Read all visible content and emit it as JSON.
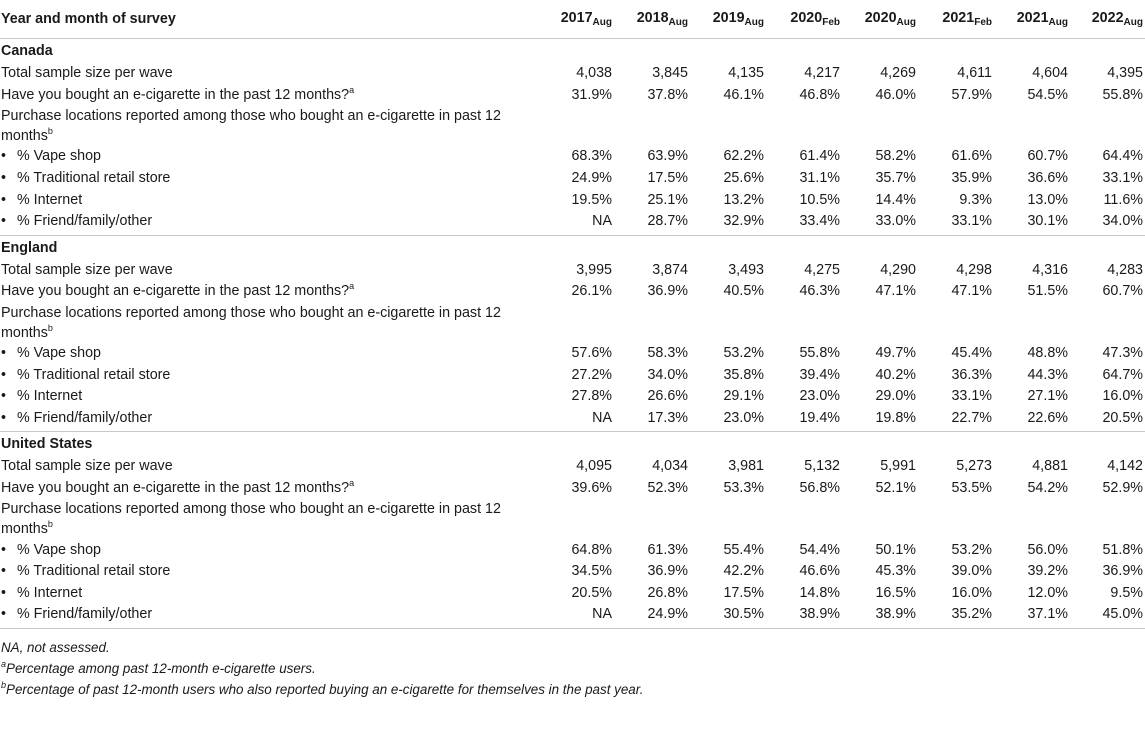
{
  "header": {
    "first": "Year and month of survey",
    "years": [
      {
        "y": "2017",
        "m": "Aug"
      },
      {
        "y": "2018",
        "m": "Aug"
      },
      {
        "y": "2019",
        "m": "Aug"
      },
      {
        "y": "2020",
        "m": "Feb"
      },
      {
        "y": "2020",
        "m": "Aug"
      },
      {
        "y": "2021",
        "m": "Feb"
      },
      {
        "y": "2021",
        "m": "Aug"
      },
      {
        "y": "2022",
        "m": "Aug"
      }
    ]
  },
  "labels": {
    "sample": "Total sample size per wave",
    "bought": "Have you bought an e-cigarette in the past 12 months?",
    "bought_sup": "a",
    "purchase": "Purchase locations reported among those who bought an e-cigarette in past 12 months",
    "purchase_sup": "b",
    "bullet": "•",
    "vape": "% Vape shop",
    "retail": "% Traditional retail store",
    "internet": "% Internet",
    "friend": "% Friend/family/other"
  },
  "countries": [
    {
      "name": "Canada",
      "sample": [
        "4,038",
        "3,845",
        "4,135",
        "4,217",
        "4,269",
        "4,611",
        "4,604",
        "4,395"
      ],
      "bought": [
        "31.9%",
        "37.8%",
        "46.1%",
        "46.8%",
        "46.0%",
        "57.9%",
        "54.5%",
        "55.8%"
      ],
      "vape": [
        "68.3%",
        "63.9%",
        "62.2%",
        "61.4%",
        "58.2%",
        "61.6%",
        "60.7%",
        "64.4%"
      ],
      "retail": [
        "24.9%",
        "17.5%",
        "25.6%",
        "31.1%",
        "35.7%",
        "35.9%",
        "36.6%",
        "33.1%"
      ],
      "internet": [
        "19.5%",
        "25.1%",
        "13.2%",
        "10.5%",
        "14.4%",
        "9.3%",
        "13.0%",
        "11.6%"
      ],
      "friend": [
        "NA",
        "28.7%",
        "32.9%",
        "33.4%",
        "33.0%",
        "33.1%",
        "30.1%",
        "34.0%"
      ]
    },
    {
      "name": "England",
      "sample": [
        "3,995",
        "3,874",
        "3,493",
        "4,275",
        "4,290",
        "4,298",
        "4,316",
        "4,283"
      ],
      "bought": [
        "26.1%",
        "36.9%",
        "40.5%",
        "46.3%",
        "47.1%",
        "47.1%",
        "51.5%",
        "60.7%"
      ],
      "vape": [
        "57.6%",
        "58.3%",
        "53.2%",
        "55.8%",
        "49.7%",
        "45.4%",
        "48.8%",
        "47.3%"
      ],
      "retail": [
        "27.2%",
        "34.0%",
        "35.8%",
        "39.4%",
        "40.2%",
        "36.3%",
        "44.3%",
        "64.7%"
      ],
      "internet": [
        "27.8%",
        "26.6%",
        "29.1%",
        "23.0%",
        "29.0%",
        "33.1%",
        "27.1%",
        "16.0%"
      ],
      "friend": [
        "NA",
        "17.3%",
        "23.0%",
        "19.4%",
        "19.8%",
        "22.7%",
        "22.6%",
        "20.5%"
      ]
    },
    {
      "name": "United States",
      "sample": [
        "4,095",
        "4,034",
        "3,981",
        "5,132",
        "5,991",
        "5,273",
        "4,881",
        "4,142"
      ],
      "bought": [
        "39.6%",
        "52.3%",
        "53.3%",
        "56.8%",
        "52.1%",
        "53.5%",
        "54.2%",
        "52.9%"
      ],
      "vape": [
        "64.8%",
        "61.3%",
        "55.4%",
        "54.4%",
        "50.1%",
        "53.2%",
        "56.0%",
        "51.8%"
      ],
      "retail": [
        "34.5%",
        "36.9%",
        "42.2%",
        "46.6%",
        "45.3%",
        "39.0%",
        "39.2%",
        "36.9%"
      ],
      "internet": [
        "20.5%",
        "26.8%",
        "17.5%",
        "14.8%",
        "16.5%",
        "16.0%",
        "12.0%",
        "9.5%"
      ],
      "friend": [
        "NA",
        "24.9%",
        "30.5%",
        "38.9%",
        "38.9%",
        "35.2%",
        "37.1%",
        "45.0%"
      ]
    }
  ],
  "notes": {
    "na": "NA, not assessed.",
    "a_sup": "a",
    "a": "Percentage among past 12-month e-cigarette users.",
    "b_sup": "b",
    "b": "Percentage of past 12-month users who also reported buying an e-cigarette for themselves in the past year."
  }
}
